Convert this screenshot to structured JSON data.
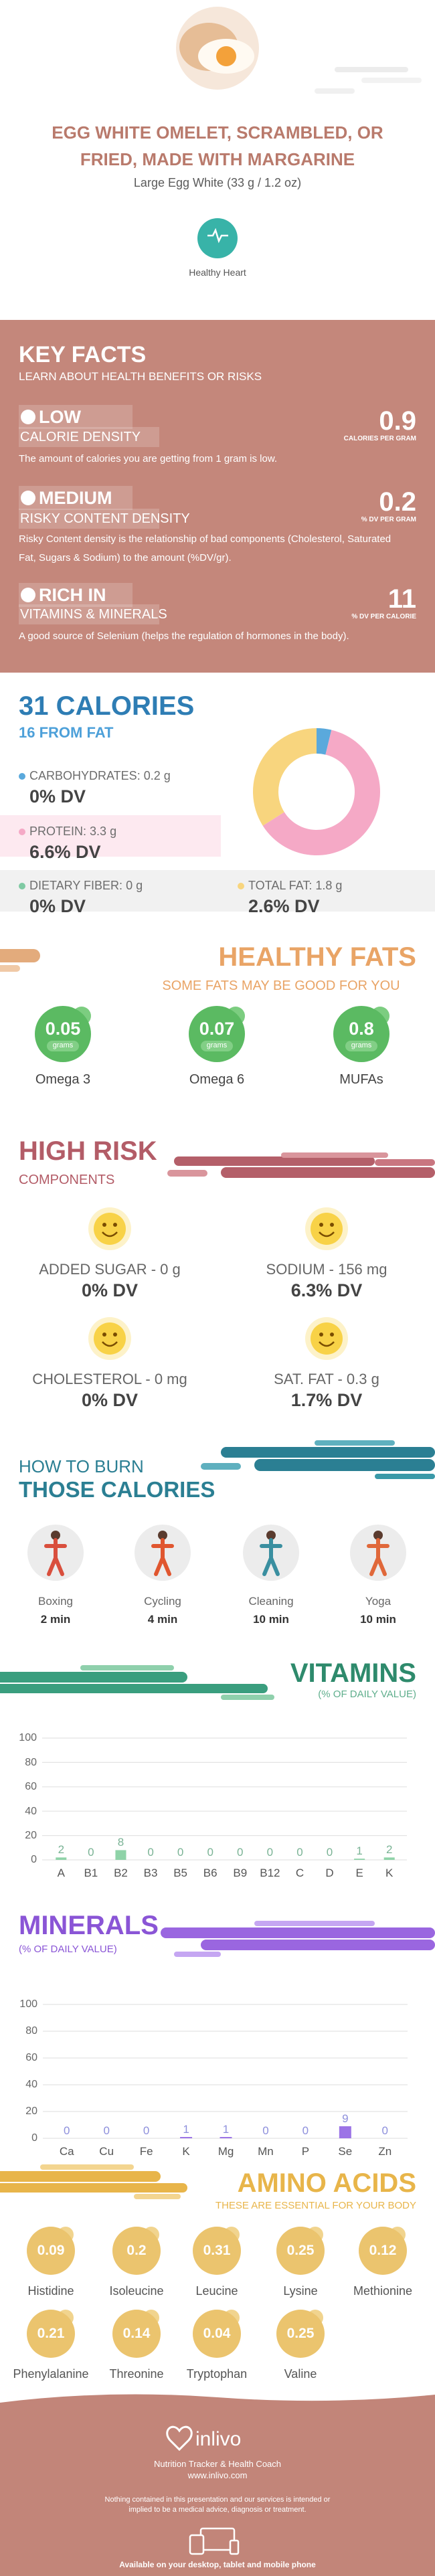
{
  "header": {
    "title": "EGG WHITE OMELET, SCRAMBLED, OR FRIED, MADE WITH MARGARINE",
    "serving": "Large Egg White (33 g / 1.2 oz)",
    "badge": "Healthy Heart"
  },
  "key_facts": {
    "title": "KEY FACTS",
    "subtitle": "LEARN ABOUT HEALTH BENEFITS OR RISKS",
    "items": [
      {
        "level": "LOW",
        "name": "CALORIE DENSITY",
        "description": "The amount of calories you are getting from 1 gram is low.",
        "value": 0.9,
        "unit": "CALORIES PER GRAM"
      },
      {
        "level": "MEDIUM",
        "name": "RISKY CONTENT DENSITY",
        "description": "Risky Content density is the relationship of bad components (Cholesterol, Saturated Fat, Sugars & Sodium) to the amount (%DV/gr).",
        "value": 0.2,
        "unit": "% DV PER GRAM"
      },
      {
        "level": "RICH IN",
        "name": "VITAMINS & MINERALS",
        "description": "A good source of Selenium (helps the regulation of hormones in the body).",
        "value": 11,
        "unit": "% DV PER CALORIE"
      }
    ]
  },
  "calories": {
    "total": 31,
    "total_label": "CALORIES",
    "from_fat": 16,
    "from_fat_label": "FROM FAT",
    "nutrients": [
      {
        "name": "CARBOHYDRATES:",
        "grams": 0.2,
        "unit": "g",
        "dv": "0% DV",
        "color": "#5aa9dc"
      },
      {
        "name": "PROTEIN:",
        "grams": 3.3,
        "unit": "g",
        "dv": "6.6% DV",
        "color": "#f5a9c6"
      },
      {
        "name": "DIETARY FIBER:",
        "grams": 0,
        "unit": "g",
        "dv": "0% DV",
        "color": "#7fcaa3"
      },
      {
        "name": "TOTAL FAT:",
        "grams": 1.8,
        "unit": "g",
        "dv": "2.6% DV",
        "color": "#f8d57e"
      }
    ]
  },
  "healthy_fats": {
    "title": "HEALTHY FATS",
    "subtitle": "SOME FATS MAY BE GOOD FOR YOU",
    "items": [
      {
        "name": "Omega 3",
        "value": 0.05,
        "unit": "grams"
      },
      {
        "name": "Omega 6",
        "value": 0.07,
        "unit": "grams"
      },
      {
        "name": "MUFAs",
        "value": 0.8,
        "unit": "grams"
      }
    ]
  },
  "high_risk": {
    "title": "HIGH RISK",
    "subtitle": "COMPONENTS",
    "items": [
      {
        "name": "ADDED SUGAR - 0 g",
        "dv": "0% DV"
      },
      {
        "name": "SODIUM - 156 mg",
        "dv": "6.3% DV"
      },
      {
        "name": "CHOLESTEROL - 0 mg",
        "dv": "0% DV"
      },
      {
        "name": "SAT. FAT - 0.3 g",
        "dv": "1.7% DV"
      }
    ]
  },
  "burn": {
    "title_top": "HOW TO BURN",
    "title_bottom": "THOSE CALORIES",
    "items": [
      {
        "name": "Boxing",
        "time": "2 min"
      },
      {
        "name": "Cycling",
        "time": "4 min"
      },
      {
        "name": "Cleaning",
        "time": "10 min"
      },
      {
        "name": "Yoga",
        "time": "10 min"
      }
    ]
  },
  "chart_data": [
    {
      "type": "bar",
      "title": "VITAMINS",
      "subtitle": "(% OF DAILY VALUE)",
      "categories": [
        "A",
        "B1",
        "B2",
        "B3",
        "B5",
        "B6",
        "B9",
        "B12",
        "C",
        "D",
        "E",
        "K"
      ],
      "values": [
        2,
        0,
        8,
        0,
        0,
        0,
        0,
        0,
        0,
        0,
        1,
        2
      ],
      "color": "#8fd3a8",
      "ylim": [
        0,
        100
      ],
      "yticks": [
        0,
        20,
        40,
        60,
        80,
        100
      ],
      "grid": true
    },
    {
      "type": "bar",
      "title": "MINERALS",
      "subtitle": "(% OF DAILY VALUE)",
      "categories": [
        "Ca",
        "Cu",
        "Fe",
        "K",
        "Mg",
        "Mn",
        "P",
        "Se",
        "Zn"
      ],
      "values": [
        0,
        0,
        0,
        1,
        1,
        0,
        0,
        9,
        0
      ],
      "color": "#9c74e6",
      "ylim": [
        0,
        100
      ],
      "yticks": [
        0,
        20,
        40,
        60,
        80,
        100
      ],
      "grid": true
    }
  ],
  "amino_acids": {
    "title": "AMINO ACIDS",
    "subtitle": "THESE ARE ESSENTIAL FOR YOUR BODY",
    "items": [
      {
        "name": "Histidine",
        "value": 0.09
      },
      {
        "name": "Isoleucine",
        "value": 0.2
      },
      {
        "name": "Leucine",
        "value": 0.31
      },
      {
        "name": "Lysine",
        "value": 0.25
      },
      {
        "name": "Methionine",
        "value": 0.12
      },
      {
        "name": "Phenylalanine",
        "value": 0.21
      },
      {
        "name": "Threonine",
        "value": 0.14
      },
      {
        "name": "Tryptophan",
        "value": 0.04
      },
      {
        "name": "Valine",
        "value": 0.25
      }
    ]
  },
  "footer": {
    "brand": "inlivo",
    "tagline": "Nutrition Tracker & Health Coach",
    "url": "www.inlivo.com",
    "disclaimer": "Nothing contained in this presentation and our services is intended or implied to be a medical advice, diagnosis or treatment.",
    "availability": "Available on your desktop, tablet and mobile phone"
  }
}
